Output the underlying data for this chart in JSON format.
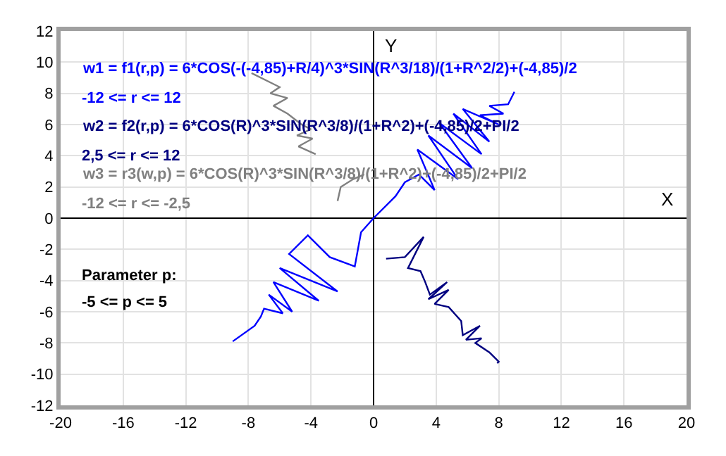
{
  "chart_data": {
    "type": "line",
    "xlabel": "X",
    "ylabel": "Y",
    "xlim": [
      -20,
      20
    ],
    "ylim": [
      -12,
      12
    ],
    "xticks": [
      -20,
      -16,
      -12,
      -8,
      -4,
      0,
      4,
      8,
      12,
      16,
      20
    ],
    "yticks": [
      -12,
      -10,
      -8,
      -6,
      -4,
      -2,
      0,
      2,
      4,
      6,
      8,
      10,
      12
    ],
    "grid": true,
    "marker": "none",
    "line_style": "solid",
    "annotations": [
      "w1 = f1(r,p) = 6*COS(-(-4,85)+R/4)^3*SIN(R^3/18)/(1+R^2/2)+(-4,85)/2",
      "-12 <= r <= 12",
      "w2 = f2(r,p) = 6*COS(R)^3*SIN(R^3/8)/(1+R^2)+(-4,85)/2+PI/2",
      "2,5 <= r <= 12",
      "w3 = r3(w,p) = 6*COS(R)^3*SIN(R^3/8)/(1+R^2)+(-4,85)/2+PI/2",
      "-12 <= r <= -2,5",
      "Parameter p:",
      "-5 <= p <= 5"
    ],
    "series": [
      {
        "color": "#0000ff",
        "x": [
          -9.0,
          -7.6,
          -7.2,
          -7.0,
          -5.8,
          -6.7,
          -5.2,
          -6.4,
          -3.5,
          -6.0,
          -2.3,
          -5.4,
          -4.2,
          -2.8,
          -1.2,
          -1.0,
          -0.8,
          0,
          1.4,
          2.0,
          2.9,
          3.9,
          2.8,
          5.4,
          3.5,
          6.3,
          4.2,
          6.9,
          5.1,
          7.4,
          5.7,
          8.0,
          6.8,
          8.3,
          7.4,
          8.6,
          9.0
        ],
        "values": [
          -7.9,
          -6.9,
          -6.3,
          -5.8,
          -6.1,
          -4.9,
          -6.0,
          -4.1,
          -5.3,
          -3.2,
          -4.7,
          -2.3,
          -1.1,
          -2.5,
          -3.1,
          -2.0,
          -0.9,
          0,
          1.4,
          2.3,
          2.8,
          1.8,
          4.4,
          2.5,
          5.3,
          3.2,
          6.1,
          4.1,
          6.7,
          4.9,
          7.0,
          6.0,
          6.6,
          6.7,
          7.2,
          7.3,
          8.1
        ]
      },
      {
        "color": "#000080",
        "x": [
          0.8,
          2.0,
          3.2,
          2.2,
          3.0,
          3.3,
          3.6,
          4.7,
          3.5,
          4.8,
          3.9,
          4.8,
          5.6,
          5.7,
          6.8,
          5.9,
          6.9,
          6.5,
          7.4,
          8.0,
          7.9
        ],
        "values": [
          -2.6,
          -2.5,
          -1.2,
          -3.2,
          -3.4,
          -4.1,
          -4.9,
          -4.1,
          -5.2,
          -4.6,
          -5.5,
          -5.7,
          -6.6,
          -7.5,
          -6.9,
          -7.8,
          -7.7,
          -8.0,
          -8.6,
          -9.2,
          -9.3
        ]
      },
      {
        "color": "#808080",
        "x": [
          -0.6,
          -1.3,
          -2.1,
          -2.3,
          null,
          -3.7,
          -4.8,
          -3.9,
          -4.9,
          -4.0,
          -4.6,
          -5.5,
          -6.4,
          -5.5,
          -6.6,
          -6.0,
          -7.8
        ],
        "values": [
          2.8,
          2.5,
          2.0,
          1.1,
          null,
          4.1,
          4.6,
          5.1,
          5.3,
          5.7,
          6.0,
          6.7,
          7.2,
          7.7,
          8.0,
          8.4,
          9.3
        ]
      }
    ]
  }
}
